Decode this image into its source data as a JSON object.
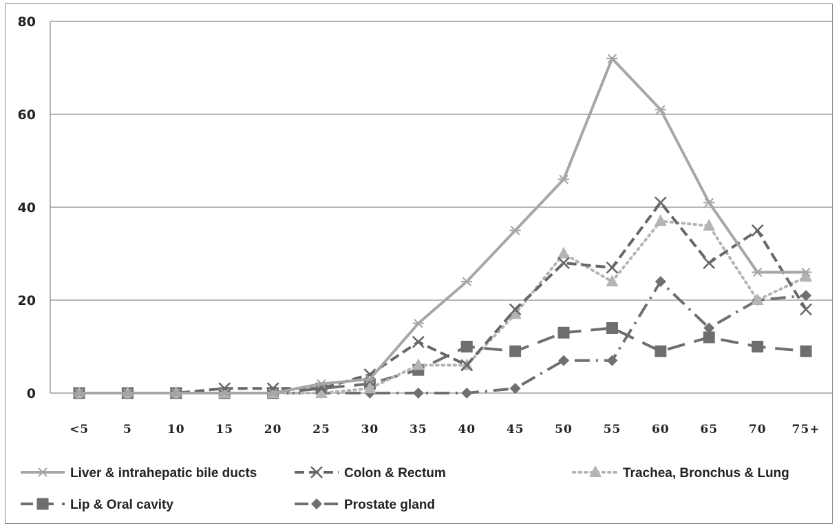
{
  "chart_data": {
    "type": "line",
    "title": "",
    "xlabel": "",
    "ylabel": "",
    "ylim": [
      0,
      80
    ],
    "yticks": [
      0,
      20,
      40,
      60,
      80
    ],
    "grid": "horizontal",
    "legend_position": "bottom",
    "categories": [
      "<5",
      "5",
      "10",
      "15",
      "20",
      "25",
      "30",
      "35",
      "40",
      "45",
      "50",
      "55",
      "60",
      "65",
      "70",
      "75+"
    ],
    "series": [
      {
        "name": "Liver &  intrahepatic bile ducts",
        "color": "#a6a6a6",
        "dash": "solid",
        "marker": "star",
        "values": [
          0,
          0,
          0,
          0,
          0,
          2,
          3,
          15,
          24,
          35,
          46,
          72,
          61,
          41,
          26,
          26
        ]
      },
      {
        "name": "Colon & Rectum",
        "color": "#676767",
        "dash": "dash",
        "marker": "x",
        "values": [
          0,
          0,
          0,
          1,
          1,
          1,
          4,
          11,
          6,
          18,
          28,
          27,
          41,
          28,
          35,
          18
        ]
      },
      {
        "name": "Trachea, Bronchus & Lung",
        "color": "#b4b4b4",
        "dash": "dot",
        "marker": "triangle",
        "values": [
          0,
          0,
          0,
          0,
          0,
          0,
          1,
          6,
          6,
          17,
          30,
          24,
          37,
          36,
          20,
          25
        ]
      },
      {
        "name": "Lip & Oral cavity",
        "color": "#6e6e6e",
        "dash": "longdash",
        "marker": "square",
        "values": [
          0,
          0,
          0,
          0,
          0,
          1,
          2,
          5,
          10,
          9,
          13,
          14,
          9,
          12,
          10,
          9
        ]
      },
      {
        "name": "Prostate gland",
        "color": "#707070",
        "dash": "dashdot",
        "marker": "diamond",
        "values": [
          0,
          0,
          0,
          0,
          0,
          0,
          0,
          0,
          0,
          1,
          7,
          7,
          24,
          14,
          20,
          21
        ]
      }
    ]
  }
}
